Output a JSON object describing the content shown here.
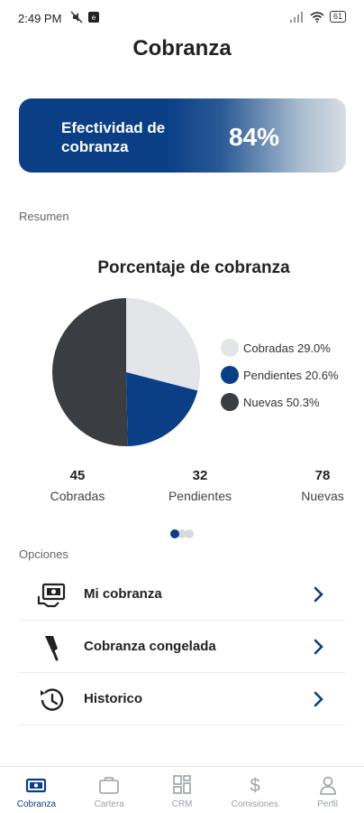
{
  "status_bar": {
    "time": "2:49 PM",
    "battery": "61"
  },
  "header": {
    "title": "Cobranza"
  },
  "efectividad": {
    "label": "Efectividad de cobranza",
    "value": "84%"
  },
  "resumen": {
    "label": "Resumen"
  },
  "chart_data": {
    "type": "pie",
    "title": "Porcentaje de cobranza",
    "slices": [
      {
        "name": "Cobradas",
        "value": 29.0,
        "label": "Cobradas 29.0%",
        "color": "#e3e5e8"
      },
      {
        "name": "Pendientes",
        "value": 20.6,
        "label": "Pendientes 20.6%",
        "color": "#0a3f86"
      },
      {
        "name": "Nuevas",
        "value": 50.3,
        "label": "Nuevas 50.3%",
        "color": "#3a3d41"
      }
    ]
  },
  "stats": {
    "cobradas": {
      "count": "45",
      "label": "Cobradas"
    },
    "pendientes": {
      "count": "32",
      "label": "Pendientes"
    },
    "nuevas": {
      "count": "78",
      "label": "Nuevas"
    }
  },
  "opciones": {
    "label": "Opciones",
    "items": [
      {
        "label": "Mi cobranza",
        "icon": "cash-icon"
      },
      {
        "label": "Cobranza congelada",
        "icon": "popsicle-icon"
      },
      {
        "label": "Historico",
        "icon": "history-icon"
      }
    ]
  },
  "bottom_nav": {
    "items": [
      {
        "label": "Cobranza",
        "icon": "cash-icon",
        "active": true
      },
      {
        "label": "Cartera",
        "icon": "briefcase-icon",
        "active": false
      },
      {
        "label": "CRM",
        "icon": "grid-icon",
        "active": false
      },
      {
        "label": "Comisiones",
        "icon": "dollar-icon",
        "active": false
      },
      {
        "label": "Perfil",
        "icon": "user-icon",
        "active": false
      }
    ]
  },
  "colors": {
    "primary": "#0a3f86",
    "inactive": "#9aa0a6"
  }
}
